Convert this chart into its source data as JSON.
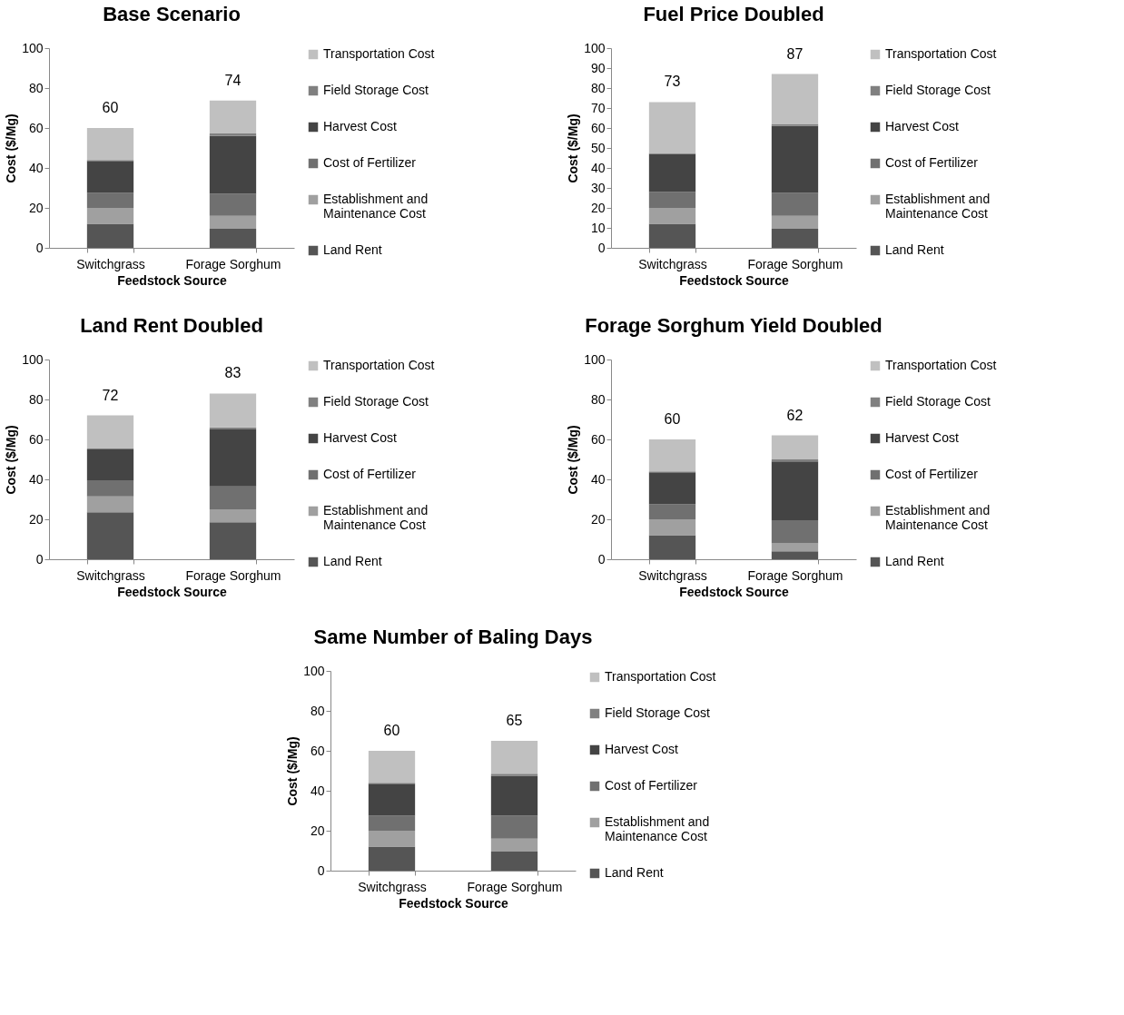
{
  "chart_data": [
    {
      "type": "bar",
      "title": "Base Scenario",
      "xlabel": "Feedstock Source",
      "ylabel": "Cost ($/Mg)",
      "categories": [
        "Switchgrass",
        "Forage Sorghum"
      ],
      "stacked": true,
      "ylim": [
        0,
        100
      ],
      "yticks": [
        0,
        20,
        40,
        60,
        80,
        100
      ],
      "legend": "right",
      "totals": [
        "60",
        "74"
      ],
      "series": [
        {
          "name": "Land Rent",
          "color": "#555555",
          "values": [
            12,
            9.5
          ]
        },
        {
          "name": "Establishment and Maintenance Cost",
          "color": "#a0a0a0",
          "values": [
            8,
            6.5
          ]
        },
        {
          "name": "Cost of Fertilizer",
          "color": "#707070",
          "values": [
            7.5,
            11
          ]
        },
        {
          "name": "Harvest Cost",
          "color": "#444444",
          "values": [
            16,
            29
          ]
        },
        {
          "name": "Field Storage Cost",
          "color": "#808080",
          "values": [
            0.5,
            1.3
          ]
        },
        {
          "name": "Transportation Cost",
          "color": "#c0c0c0",
          "values": [
            16,
            16.5
          ]
        }
      ]
    },
    {
      "type": "bar",
      "title": "Fuel Price Doubled",
      "xlabel": "Feedstock Source",
      "ylabel": "Cost ($/Mg)",
      "categories": [
        "Switchgrass",
        "Forage Sorghum"
      ],
      "stacked": true,
      "ylim": [
        0,
        100
      ],
      "yticks": [
        0,
        10,
        20,
        30,
        40,
        50,
        60,
        70,
        80,
        90,
        100
      ],
      "legend": "right",
      "totals": [
        "73",
        "87"
      ],
      "series": [
        {
          "name": "Land Rent",
          "color": "#555555",
          "values": [
            12,
            9.5
          ]
        },
        {
          "name": "Establishment and Maintenance Cost",
          "color": "#a0a0a0",
          "values": [
            8,
            6.5
          ]
        },
        {
          "name": "Cost of Fertilizer",
          "color": "#707070",
          "values": [
            8,
            11.5
          ]
        },
        {
          "name": "Harvest Cost",
          "color": "#444444",
          "values": [
            19,
            33.5
          ]
        },
        {
          "name": "Field Storage Cost",
          "color": "#808080",
          "values": [
            0.5,
            1
          ]
        },
        {
          "name": "Transportation Cost",
          "color": "#c0c0c0",
          "values": [
            25.5,
            25
          ]
        }
      ]
    },
    {
      "type": "bar",
      "title": "Land Rent Doubled",
      "xlabel": "Feedstock Source",
      "ylabel": "Cost ($/Mg)",
      "categories": [
        "Switchgrass",
        "Forage Sorghum"
      ],
      "stacked": true,
      "ylim": [
        0,
        100
      ],
      "yticks": [
        0,
        20,
        40,
        60,
        80,
        100
      ],
      "legend": "right",
      "totals": [
        "72",
        "83"
      ],
      "series": [
        {
          "name": "Land Rent",
          "color": "#555555",
          "values": [
            23.5,
            18.5
          ]
        },
        {
          "name": "Establishment and Maintenance Cost",
          "color": "#a0a0a0",
          "values": [
            8,
            6.5
          ]
        },
        {
          "name": "Cost of Fertilizer",
          "color": "#707070",
          "values": [
            8,
            11.5
          ]
        },
        {
          "name": "Harvest Cost",
          "color": "#444444",
          "values": [
            15.5,
            28.5
          ]
        },
        {
          "name": "Field Storage Cost",
          "color": "#808080",
          "values": [
            0.5,
            1
          ]
        },
        {
          "name": "Transportation Cost",
          "color": "#c0c0c0",
          "values": [
            16.5,
            17
          ]
        }
      ]
    },
    {
      "type": "bar",
      "title": "Forage Sorghum Yield Doubled",
      "xlabel": "Feedstock Source",
      "ylabel": "Cost ($/Mg)",
      "categories": [
        "Switchgrass",
        "Forage Sorghum"
      ],
      "stacked": true,
      "ylim": [
        0,
        100
      ],
      "yticks": [
        0,
        20,
        40,
        60,
        80,
        100
      ],
      "legend": "right",
      "totals": [
        "60",
        "62"
      ],
      "series": [
        {
          "name": "Land Rent",
          "color": "#555555",
          "values": [
            12,
            4
          ]
        },
        {
          "name": "Establishment and Maintenance Cost",
          "color": "#a0a0a0",
          "values": [
            8,
            4
          ]
        },
        {
          "name": "Cost of Fertilizer",
          "color": "#707070",
          "values": [
            7.5,
            11.5
          ]
        },
        {
          "name": "Harvest Cost",
          "color": "#444444",
          "values": [
            16,
            29.5
          ]
        },
        {
          "name": "Field Storage Cost",
          "color": "#808080",
          "values": [
            0.5,
            1
          ]
        },
        {
          "name": "Transportation Cost",
          "color": "#c0c0c0",
          "values": [
            16,
            12
          ]
        }
      ]
    },
    {
      "type": "bar",
      "title": "Same Number of Baling Days",
      "xlabel": "Feedstock Source",
      "ylabel": "Cost ($/Mg)",
      "categories": [
        "Switchgrass",
        "Forage Sorghum"
      ],
      "stacked": true,
      "ylim": [
        0,
        100
      ],
      "yticks": [
        0,
        20,
        40,
        60,
        80,
        100
      ],
      "legend": "right",
      "totals": [
        "60",
        "65"
      ],
      "series": [
        {
          "name": "Land Rent",
          "color": "#555555",
          "values": [
            12,
            9.5
          ]
        },
        {
          "name": "Establishment and Maintenance Cost",
          "color": "#a0a0a0",
          "values": [
            8,
            6.5
          ]
        },
        {
          "name": "Cost of Fertilizer",
          "color": "#707070",
          "values": [
            7.5,
            11.5
          ]
        },
        {
          "name": "Harvest Cost",
          "color": "#444444",
          "values": [
            16,
            20
          ]
        },
        {
          "name": "Field Storage Cost",
          "color": "#808080",
          "values": [
            0.5,
            1
          ]
        },
        {
          "name": "Transportation Cost",
          "color": "#c0c0c0",
          "values": [
            16,
            16.5
          ]
        }
      ]
    }
  ]
}
